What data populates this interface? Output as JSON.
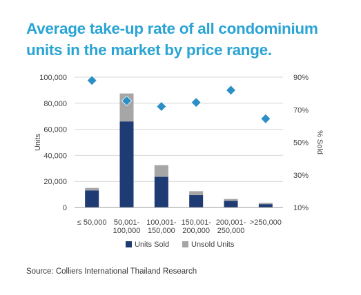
{
  "title": "Average take-up rate of all condominium units in the market by price range.",
  "source": "Source: Colliers International Thailand Research",
  "colors": {
    "title": "#2aa4d4",
    "units_sold": "#1f3b73",
    "unsold_units": "#a6a6a6",
    "pct_sold": "#2b8ec6"
  },
  "chart_data": {
    "type": "bar",
    "stacked": true,
    "categories": [
      [
        "≤ 50,000"
      ],
      [
        "50,001-",
        "100,000"
      ],
      [
        "100,001-",
        "150,000"
      ],
      [
        "150,001-",
        "200,000"
      ],
      [
        "200,001-",
        "250,000"
      ],
      [
        ">250,000"
      ]
    ],
    "series": [
      {
        "name": "Units Sold",
        "values": [
          13000,
          66000,
          23500,
          9500,
          5000,
          2500
        ]
      },
      {
        "name": "Unsold Units",
        "values": [
          2000,
          21500,
          9000,
          3000,
          1500,
          1000
        ]
      }
    ],
    "line_series": {
      "values": [
        88,
        75.5,
        72,
        74.5,
        82,
        64.5
      ],
      "marker": "diamond"
    },
    "ylabel": "Units",
    "y2label": "% Sold",
    "ylim": [
      0,
      100000
    ],
    "yticks": [
      "100,000",
      "80,000",
      "60,000",
      "40,000",
      "20,000",
      "0"
    ],
    "y2lim": [
      10,
      90
    ],
    "y2ticks": [
      "90%",
      "70%",
      "50%",
      "30%",
      "10%"
    ],
    "grid": true,
    "legend": "bottom"
  }
}
